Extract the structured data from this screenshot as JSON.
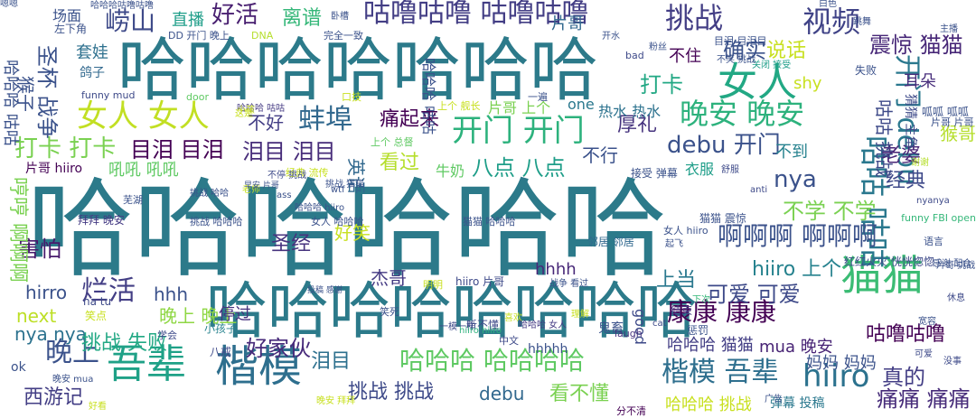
{
  "words": [
    {
      "text": "哈哈哈哈哈哈",
      "color": "#2c7a8a"
    },
    {
      "text": "哈哈哈哈哈哈哈",
      "color": "#2c7a8a"
    },
    {
      "text": "哈哈哈哈哈哈哈哈",
      "color": "#2c7a8a"
    },
    {
      "text": "楷模",
      "color": "#2e6f8e"
    },
    {
      "text": "吾辈",
      "color": "#1fa187"
    },
    {
      "text": "猫猫",
      "color": "#3bbc74"
    },
    {
      "text": "咕噜咕噜 咕噜咕噜",
      "color": "#433e85"
    },
    {
      "text": "女人 女人",
      "color": "#c2df23"
    },
    {
      "text": "开门 开门",
      "color": "#2db27d"
    },
    {
      "text": "晚安 晚安",
      "color": "#2db27d"
    },
    {
      "text": "康康 康康",
      "color": "#440154"
    },
    {
      "text": "楷模 吾辈",
      "color": "#2e6f8e"
    },
    {
      "text": "哈哈哈 哈哈哈哈",
      "color": "#5ec962"
    },
    {
      "text": "咕咕 咕咕",
      "color": "#2a788e"
    },
    {
      "text": "开门 debu",
      "color": "#2a788e"
    },
    {
      "text": "女人",
      "color": "#22a884"
    },
    {
      "text": "挑战",
      "color": "#433e85"
    },
    {
      "text": "视频",
      "color": "#404387"
    },
    {
      "text": "蚌埠",
      "color": "#31688e"
    },
    {
      "text": "啊啊啊 啊啊啊",
      "color": "#3b528b"
    },
    {
      "text": "晚上",
      "color": "#3b528b"
    },
    {
      "text": "hiiro",
      "color": "#2c728e"
    },
    {
      "text": "崂山",
      "color": "#3e4a89"
    },
    {
      "text": "直播",
      "color": "#1f9e89"
    },
    {
      "text": "好活",
      "color": "#481f70"
    },
    {
      "text": "离谱",
      "color": "#35b779"
    },
    {
      "text": "说话",
      "color": "#c8e020"
    },
    {
      "text": "震惊 猫猫",
      "color": "#482878"
    },
    {
      "text": "debu 开门",
      "color": "#3b528b"
    },
    {
      "text": "打卡 打卡",
      "color": "#7ad151"
    },
    {
      "text": "目泪 目泪",
      "color": "#440154"
    },
    {
      "text": "泪目 泪目",
      "color": "#472c7a"
    },
    {
      "text": "痛起来",
      "color": "#440154"
    },
    {
      "text": "烂活",
      "color": "#433e85"
    },
    {
      "text": "圣杯 战争",
      "color": "#3b528b"
    },
    {
      "text": "八点 八点",
      "color": "#1f9e89"
    },
    {
      "text": "看过",
      "color": "#b5de2b"
    },
    {
      "text": "厚礼",
      "color": "#46337e"
    },
    {
      "text": "确实",
      "color": "#3b528b"
    },
    {
      "text": "打卡",
      "color": "#22a884"
    },
    {
      "text": "不住",
      "color": "#440154"
    },
    {
      "text": "nya",
      "color": "#3b528b"
    },
    {
      "text": "不学 不学",
      "color": "#7ad151"
    },
    {
      "text": "好笑",
      "color": "#c8e020"
    },
    {
      "text": "圣经",
      "color": "#46337e"
    },
    {
      "text": "杰哥",
      "color": "#443a83"
    },
    {
      "text": "hhhh",
      "color": "#482878"
    },
    {
      "text": "hiiro 上个",
      "color": "#26828e"
    },
    {
      "text": "可爱 可爱",
      "color": "#3e4a89"
    },
    {
      "text": "上当",
      "color": "#2a788e"
    },
    {
      "text": "害怕",
      "color": "#481a6c"
    },
    {
      "text": "hirro",
      "color": "#3b528b"
    },
    {
      "text": "next",
      "color": "#bddf26"
    },
    {
      "text": "nya nya",
      "color": "#2c728e"
    },
    {
      "text": "挑战 失败",
      "color": "#22a884"
    },
    {
      "text": "好家伙",
      "color": "#472a7a"
    },
    {
      "text": "泪目",
      "color": "#2d708e"
    },
    {
      "text": "挑战 挑战",
      "color": "#3e4a89"
    },
    {
      "text": "debu",
      "color": "#31688e"
    },
    {
      "text": "看不懂",
      "color": "#7ad151"
    },
    {
      "text": "哈哈哈 猫猫",
      "color": "#433e85"
    },
    {
      "text": "妈妈 妈妈",
      "color": "#3b528b"
    },
    {
      "text": "真的",
      "color": "#433e85"
    },
    {
      "text": "痛痛 痛痛",
      "color": "#472c7a"
    },
    {
      "text": "咕噜咕噜",
      "color": "#440154"
    },
    {
      "text": "经典",
      "color": "#3e4989"
    },
    {
      "text": "老婆",
      "color": "#482576"
    },
    {
      "text": "猴哥",
      "color": "#b5de2b"
    },
    {
      "text": "耳朵",
      "color": "#472d7b"
    },
    {
      "text": "英语",
      "color": "#31688e"
    },
    {
      "text": "不到",
      "color": "#26828e"
    },
    {
      "text": "不行",
      "color": "#3b528b"
    },
    {
      "text": "西游记",
      "color": "#433e85"
    },
    {
      "text": "晚上 晚上",
      "color": "#8fd744"
    },
    {
      "text": "停过",
      "color": "#46327e"
    },
    {
      "text": "hhh",
      "color": "#3b528b"
    },
    {
      "text": "mua 晚安",
      "color": "#482475"
    },
    {
      "text": "片哥 hiiro",
      "color": "#440154"
    },
    {
      "text": "吼吼 吼吼",
      "color": "#5ec962"
    },
    {
      "text": "套娃",
      "color": "#2d708e"
    },
    {
      "text": "场面",
      "color": "#3b528b"
    },
    {
      "text": "片哥",
      "color": "#31688e"
    },
    {
      "text": "不好",
      "color": "#433e85"
    },
    {
      "text": "牛奶",
      "color": "#5ec962"
    },
    {
      "text": "热水 热水",
      "color": "#2c728e"
    },
    {
      "text": "片哥 上个",
      "color": "#7ad151"
    },
    {
      "text": "one",
      "color": "#2a788e"
    },
    {
      "text": "shy",
      "color": "#c8e020"
    },
    {
      "text": "衣服",
      "color": "#1f9e89"
    },
    {
      "text": "鸽子",
      "color": "#31688e"
    },
    {
      "text": "funny mud",
      "color": "#3e4a89"
    },
    {
      "text": "door",
      "color": "#5ec962"
    },
    {
      "text": "hhhhh",
      "color": "#3b528b"
    },
    {
      "text": "good",
      "color": "#3e4a89"
    },
    {
      "text": "猫猫 震惊",
      "color": "#3b528b"
    },
    {
      "text": "鬼畜",
      "color": "#3b528b"
    },
    {
      "text": "红红火火 恍恍惚惚",
      "color": "#3e4a89"
    },
    {
      "text": "语言",
      "color": "#3b528b"
    },
    {
      "text": "funny FBI open",
      "color": "#35b779"
    },
    {
      "text": "惩罚",
      "color": "#3b528b"
    },
    {
      "text": "结束",
      "color": "#443a83"
    },
    {
      "text": "听不懂",
      "color": "#3e4a89"
    },
    {
      "text": "中文",
      "color": "#3e4a89"
    },
    {
      "text": "laugh",
      "color": "#46327e"
    },
    {
      "text": "分不清",
      "color": "#440154"
    },
    {
      "text": "弹幕 投稿",
      "color": "#2a788e"
    },
    {
      "text": "哈哈哈 挑战",
      "color": "#c8e020"
    },
    {
      "text": "ok",
      "color": "#3b528b"
    },
    {
      "text": "八戒",
      "color": "#3e4a89"
    },
    {
      "text": "小孩子",
      "color": "#26828e"
    },
    {
      "text": "学会",
      "color": "#3e4a89"
    },
    {
      "text": "na tu",
      "color": "#3e4a89"
    },
    {
      "text": "笑点",
      "color": "#c8e020"
    },
    {
      "text": "拜拜 晚安",
      "color": "#443a83"
    },
    {
      "text": "挑战 哈哈哈",
      "color": "#3b528b"
    },
    {
      "text": "女人 哈哈哈",
      "color": "#3b528b"
    },
    {
      "text": "猫猫 哈哈哈",
      "color": "#3b528b"
    },
    {
      "text": "邻居 邻居",
      "color": "#31688e"
    },
    {
      "text": "cat",
      "color": "#3e4a89"
    },
    {
      "text": "理解",
      "color": "#c8e020"
    },
    {
      "text": "芜湖",
      "color": "#3b528b"
    },
    {
      "text": "经典 流传",
      "color": "#c8e020"
    },
    {
      "text": "接受 弹幕",
      "color": "#3b528b"
    },
    {
      "text": "anti",
      "color": "#3e4a89"
    },
    {
      "text": "nyanya",
      "color": "#3e4a89"
    },
    {
      "text": "舒服",
      "color": "#3e4a89"
    },
    {
      "text": "左下角",
      "color": "#3b528b"
    },
    {
      "text": "DD 开门 晚上",
      "color": "#3b528b"
    },
    {
      "text": "DNA",
      "color": "#b5de2b"
    },
    {
      "text": "完全一致",
      "color": "#3b528b"
    },
    {
      "text": "bad",
      "color": "#3e4a89"
    },
    {
      "text": "目泪 目泪目",
      "color": "#3b528b"
    },
    {
      "text": "一遍",
      "color": "#3b528b"
    },
    {
      "text": "口技",
      "color": "#c8e020"
    },
    {
      "text": "哈哈哈 咕咕",
      "color": "#443a83"
    },
    {
      "text": "上个 总督",
      "color": "#5ec962"
    },
    {
      "text": "上个 舰长",
      "color": "#c8e020"
    },
    {
      "text": "这是",
      "color": "#c8e020"
    },
    {
      "text": "哈哈哈咕噜咕噜",
      "color": "#3b528b"
    },
    {
      "text": "卧槽",
      "color": "#3b528b"
    },
    {
      "text": "白色",
      "color": "#3b528b"
    },
    {
      "text": "关闭 接受",
      "color": "#1f9e89"
    },
    {
      "text": "失败",
      "color": "#3b528b"
    },
    {
      "text": "呱呱 呱呱",
      "color": "#3b528b"
    },
    {
      "text": "片哥 片哥",
      "color": "#3b528b"
    },
    {
      "text": "休息",
      "color": "#3e4a89"
    },
    {
      "text": "没事",
      "color": "#3e4a89"
    },
    {
      "text": "可爱",
      "color": "#3e4a89"
    },
    {
      "text": "下次",
      "color": "#35b779"
    },
    {
      "text": "谢谢",
      "color": "#b5de2b"
    },
    {
      "text": "感谢 配合",
      "color": "#3b528b"
    },
    {
      "text": "好看",
      "color": "#c8e020"
    },
    {
      "text": "晚安 拜拜",
      "color": "#c8e020"
    },
    {
      "text": "老师",
      "color": "#c8e020"
    },
    {
      "text": "ass",
      "color": "#3b528b"
    },
    {
      "text": "wtf",
      "color": "#3b528b"
    },
    {
      "text": "明明",
      "color": "#c8e020"
    },
    {
      "text": "喜欢",
      "color": "#c8e020"
    },
    {
      "text": "一模一样",
      "color": "#3e4a89"
    },
    {
      "text": "投稿 感谢",
      "color": "#3b528b"
    },
    {
      "text": "挑战 猫猫",
      "color": "#3b528b"
    },
    {
      "text": "挑战 哈哈",
      "color": "#3b528b"
    },
    {
      "text": "哈哈哈 hiiro",
      "color": "#3b528b"
    },
    {
      "text": "小孩",
      "color": "#c8e020"
    },
    {
      "text": "笑死",
      "color": "#3b528b"
    },
    {
      "text": "hiiro 片哥",
      "color": "#3e4a89"
    },
    {
      "text": "hiiro hiiro",
      "color": "#2db27d"
    },
    {
      "text": "哈哈哈 女人",
      "color": "#443a83"
    },
    {
      "text": "战争 看过",
      "color": "#3b528b"
    },
    {
      "text": "不笑 挑战",
      "color": "#3b528b"
    },
    {
      "text": "粉丝",
      "color": "#3b528b"
    },
    {
      "text": "开水",
      "color": "#3b528b"
    },
    {
      "text": "哈哈哈 咕咕",
      "color": "#3b528b"
    },
    {
      "text": "猜猜 主角",
      "color": "#3e4a89"
    },
    {
      "text": "咕咕 挑战",
      "color": "#3e4a89"
    },
    {
      "text": "不停 挑战",
      "color": "#3e4a89"
    },
    {
      "text": "哈哈哈 咕咕",
      "color": "#3b528b"
    },
    {
      "text": "哼哼 啊啊啊",
      "color": "#7ad151"
    },
    {
      "text": "猴子",
      "color": "#3b528b"
    },
    {
      "text": "晚安 mua",
      "color": "#3b528b"
    },
    {
      "text": "广告",
      "color": "#3b528b"
    },
    {
      "text": "宽容",
      "color": "#3b528b"
    },
    {
      "text": "主播",
      "color": "#3b528b"
    },
    {
      "text": "跳舞",
      "color": "#3b528b"
    },
    {
      "text": "早安 片哥",
      "color": "#3b528b"
    },
    {
      "text": "起飞",
      "color": "#3b528b"
    },
    {
      "text": "女人 hiiro",
      "color": "#3b528b"
    },
    {
      "text": "片哥 挑战",
      "color": "#3b528b"
    },
    {
      "text": "嗯嗯",
      "color": "#3b528b"
    }
  ]
}
